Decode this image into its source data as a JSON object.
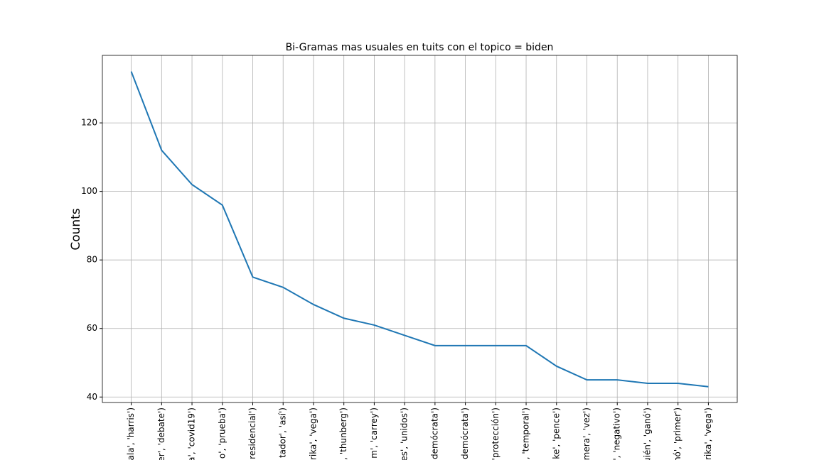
{
  "chart_data": {
    "type": "line",
    "title": "Bi-Gramas mas usuales en tuits con el topico = biden",
    "y_label": "Counts",
    "categories": [
      "ala', 'harris')",
      "er', 'debate')",
      "a', 'covid19')",
      "o', 'prueba')",
      "residencial')",
      "tador', 'así')",
      "rika', 'vega')",
      "', 'thunberg')",
      "m', 'carrey')",
      "es', 'unidos')",
      "demócrata')",
      "demócrata')",
      "'protección')",
      "', 'temporal')",
      "ke', 'pence')",
      "mera', 'vez')",
      "', 'negativo')",
      "uién', 'ganó')",
      "nó', 'primer')",
      "rika', 'vega')"
    ],
    "values": [
      135,
      112,
      102,
      96,
      75,
      72,
      67,
      63,
      61,
      58,
      55,
      55,
      55,
      55,
      49,
      45,
      45,
      44,
      44,
      43
    ],
    "color": "#1f77b4",
    "ylim": [
      38.4,
      139.7
    ],
    "yticks": [
      40,
      60,
      80,
      100,
      120
    ],
    "grid": true
  }
}
